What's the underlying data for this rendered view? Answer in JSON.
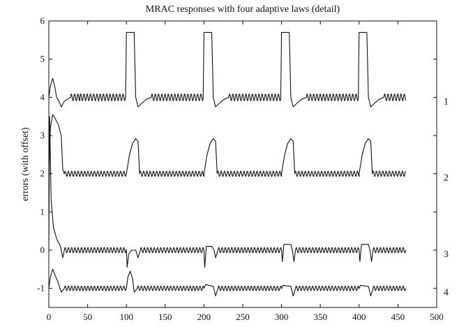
{
  "chart_data": {
    "type": "line",
    "title": "MRAC responses with four adaptive laws (detail)",
    "xlabel": "",
    "ylabel": "errors (with offset)",
    "xlim": [
      0,
      500
    ],
    "ylim": [
      -1.5,
      6
    ],
    "xticks": [
      0,
      50,
      100,
      150,
      200,
      250,
      300,
      350,
      400,
      450,
      500
    ],
    "yticks": [
      -1,
      0,
      1,
      2,
      3,
      4,
      5,
      6
    ],
    "grid": false,
    "legend": "none",
    "series": [
      {
        "name": "1",
        "offset": 4,
        "ripple_amplitude": 0.09,
        "points": [
          [
            0,
            4.0
          ],
          [
            2,
            4.3
          ],
          [
            5,
            4.5
          ],
          [
            8,
            4.25
          ],
          [
            10,
            4.0
          ],
          [
            13,
            3.9
          ],
          [
            16,
            3.75
          ],
          [
            20,
            3.9
          ],
          [
            24,
            3.95
          ],
          [
            28,
            4.0
          ],
          [
            40,
            4.0
          ],
          [
            99,
            4.0
          ],
          [
            100,
            5.7
          ],
          [
            110,
            5.7
          ],
          [
            112,
            4.0
          ],
          [
            115,
            3.75
          ],
          [
            120,
            3.85
          ],
          [
            126,
            3.95
          ],
          [
            132,
            4.0
          ],
          [
            199,
            4.0
          ],
          [
            200,
            5.7
          ],
          [
            210,
            5.7
          ],
          [
            212,
            4.0
          ],
          [
            215,
            3.75
          ],
          [
            220,
            3.85
          ],
          [
            226,
            3.95
          ],
          [
            232,
            4.0
          ],
          [
            299,
            4.0
          ],
          [
            300,
            5.7
          ],
          [
            310,
            5.7
          ],
          [
            312,
            4.0
          ],
          [
            315,
            3.75
          ],
          [
            320,
            3.85
          ],
          [
            326,
            3.95
          ],
          [
            332,
            4.0
          ],
          [
            399,
            4.0
          ],
          [
            400,
            5.7
          ],
          [
            410,
            5.7
          ],
          [
            412,
            4.0
          ],
          [
            415,
            3.75
          ],
          [
            420,
            3.85
          ],
          [
            426,
            3.95
          ],
          [
            432,
            4.0
          ],
          [
            460,
            4.0
          ]
        ]
      },
      {
        "name": "2",
        "offset": 2,
        "ripple_amplitude": 0.07,
        "points": [
          [
            0,
            2.0
          ],
          [
            2,
            3.2
          ],
          [
            5,
            3.55
          ],
          [
            8,
            3.45
          ],
          [
            12,
            3.3
          ],
          [
            16,
            3.0
          ],
          [
            18,
            2.1
          ],
          [
            20,
            2.0
          ],
          [
            100,
            2.0
          ],
          [
            104,
            2.5
          ],
          [
            108,
            2.8
          ],
          [
            112,
            2.92
          ],
          [
            115,
            2.85
          ],
          [
            117,
            2.0
          ],
          [
            200,
            2.0
          ],
          [
            204,
            2.5
          ],
          [
            208,
            2.8
          ],
          [
            212,
            2.92
          ],
          [
            215,
            2.85
          ],
          [
            217,
            2.0
          ],
          [
            300,
            2.0
          ],
          [
            304,
            2.5
          ],
          [
            308,
            2.8
          ],
          [
            312,
            2.92
          ],
          [
            315,
            2.85
          ],
          [
            317,
            2.0
          ],
          [
            400,
            2.0
          ],
          [
            404,
            2.5
          ],
          [
            408,
            2.8
          ],
          [
            412,
            2.92
          ],
          [
            415,
            2.85
          ],
          [
            417,
            2.0
          ],
          [
            460,
            2.0
          ]
        ]
      },
      {
        "name": "3",
        "offset": 0,
        "ripple_amplitude": 0.07,
        "points": [
          [
            0,
            0.0
          ],
          [
            1,
            3.5
          ],
          [
            3,
            1.3
          ],
          [
            6,
            0.6
          ],
          [
            10,
            0.3
          ],
          [
            15,
            0.1
          ],
          [
            18,
            -0.2
          ],
          [
            20,
            0.0
          ],
          [
            100,
            0.0
          ],
          [
            101,
            -0.45
          ],
          [
            103,
            -0.1
          ],
          [
            107,
            0.0
          ],
          [
            112,
            0.0
          ],
          [
            115,
            -0.2
          ],
          [
            118,
            0.0
          ],
          [
            200,
            0.0
          ],
          [
            201,
            -0.45
          ],
          [
            203,
            0.1
          ],
          [
            210,
            0.1
          ],
          [
            213,
            0.0
          ],
          [
            215,
            -0.2
          ],
          [
            218,
            0.0
          ],
          [
            300,
            0.0
          ],
          [
            301,
            -0.3
          ],
          [
            303,
            0.15
          ],
          [
            312,
            0.15
          ],
          [
            314,
            0.0
          ],
          [
            316,
            -0.3
          ],
          [
            318,
            0.0
          ],
          [
            400,
            0.0
          ],
          [
            401,
            -0.3
          ],
          [
            403,
            0.15
          ],
          [
            412,
            0.15
          ],
          [
            414,
            0.0
          ],
          [
            416,
            -0.3
          ],
          [
            418,
            0.0
          ],
          [
            460,
            0.0
          ]
        ]
      },
      {
        "name": "4",
        "offset": -1,
        "ripple_amplitude": 0.06,
        "points": [
          [
            0,
            -1.0
          ],
          [
            2,
            -0.7
          ],
          [
            5,
            -0.5
          ],
          [
            8,
            -0.65
          ],
          [
            12,
            -0.85
          ],
          [
            16,
            -1.1
          ],
          [
            20,
            -1.0
          ],
          [
            100,
            -1.0
          ],
          [
            102,
            -0.7
          ],
          [
            105,
            -0.55
          ],
          [
            108,
            -0.75
          ],
          [
            110,
            -1.1
          ],
          [
            114,
            -1.0
          ],
          [
            200,
            -1.0
          ],
          [
            202,
            -0.9
          ],
          [
            212,
            -0.95
          ],
          [
            215,
            -1.2
          ],
          [
            218,
            -1.0
          ],
          [
            300,
            -1.0
          ],
          [
            302,
            -0.92
          ],
          [
            312,
            -0.95
          ],
          [
            315,
            -1.2
          ],
          [
            318,
            -1.0
          ],
          [
            400,
            -1.0
          ],
          [
            402,
            -0.92
          ],
          [
            412,
            -0.95
          ],
          [
            415,
            -1.2
          ],
          [
            418,
            -1.0
          ],
          [
            460,
            -1.0
          ]
        ]
      }
    ]
  }
}
